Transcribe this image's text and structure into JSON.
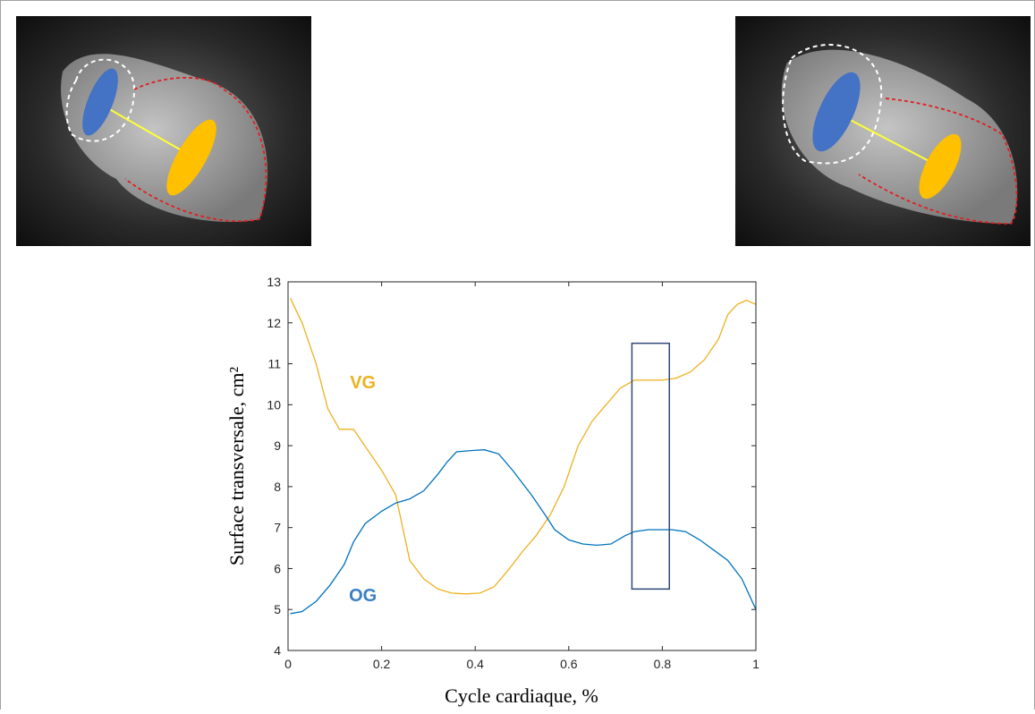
{
  "chart_data": {
    "type": "line",
    "xlabel": "Cycle cardiaque, %",
    "ylabel": "Surface transversale, cm²",
    "xlim": [
      0,
      1
    ],
    "xticks": [
      0,
      0.2,
      0.4,
      0.6,
      0.8,
      1
    ],
    "ylim": [
      4,
      13
    ],
    "yticks": [
      4,
      5,
      6,
      7,
      8,
      9,
      10,
      11,
      12,
      13
    ],
    "series": [
      {
        "name": "VG",
        "color": "#EDB120",
        "x": [
          0.005,
          0.03,
          0.06,
          0.085,
          0.11,
          0.14,
          0.17,
          0.2,
          0.23,
          0.26,
          0.29,
          0.32,
          0.35,
          0.38,
          0.41,
          0.44,
          0.47,
          0.5,
          0.53,
          0.56,
          0.59,
          0.62,
          0.65,
          0.68,
          0.71,
          0.74,
          0.77,
          0.8,
          0.83,
          0.86,
          0.89,
          0.92,
          0.94,
          0.96,
          0.98,
          1.0
        ],
        "values": [
          12.6,
          12.0,
          11.0,
          9.9,
          9.4,
          9.4,
          8.9,
          8.4,
          7.8,
          6.2,
          5.75,
          5.5,
          5.4,
          5.38,
          5.4,
          5.55,
          5.95,
          6.4,
          6.8,
          7.3,
          8.0,
          9.0,
          9.6,
          10.0,
          10.4,
          10.6,
          10.6,
          10.6,
          10.65,
          10.8,
          11.1,
          11.6,
          12.2,
          12.45,
          12.55,
          12.45
        ]
      },
      {
        "name": "OG",
        "color": "#0072BD",
        "x": [
          0.005,
          0.03,
          0.06,
          0.09,
          0.12,
          0.14,
          0.165,
          0.2,
          0.23,
          0.26,
          0.29,
          0.32,
          0.34,
          0.36,
          0.39,
          0.42,
          0.45,
          0.48,
          0.52,
          0.55,
          0.57,
          0.6,
          0.63,
          0.66,
          0.69,
          0.72,
          0.74,
          0.77,
          0.8,
          0.82,
          0.85,
          0.88,
          0.91,
          0.94,
          0.97,
          1.0
        ],
        "values": [
          4.9,
          4.95,
          5.2,
          5.6,
          6.1,
          6.65,
          7.1,
          7.4,
          7.6,
          7.7,
          7.9,
          8.3,
          8.6,
          8.85,
          8.88,
          8.9,
          8.8,
          8.4,
          7.8,
          7.3,
          6.95,
          6.7,
          6.6,
          6.57,
          6.6,
          6.8,
          6.9,
          6.95,
          6.95,
          6.95,
          6.9,
          6.7,
          6.45,
          6.2,
          5.75,
          5.0
        ]
      }
    ],
    "series_labels": [
      {
        "text": "VG",
        "x": 0.16,
        "y": 10.4,
        "color": "#EDB120"
      },
      {
        "text": "OG",
        "x": 0.16,
        "y": 5.2,
        "color": "#3A7FC4"
      }
    ],
    "highlight": {
      "xlim": [
        0.735,
        0.815
      ],
      "ylim": [
        5.5,
        11.5
      ],
      "color": "#2E4A7A"
    }
  }
}
